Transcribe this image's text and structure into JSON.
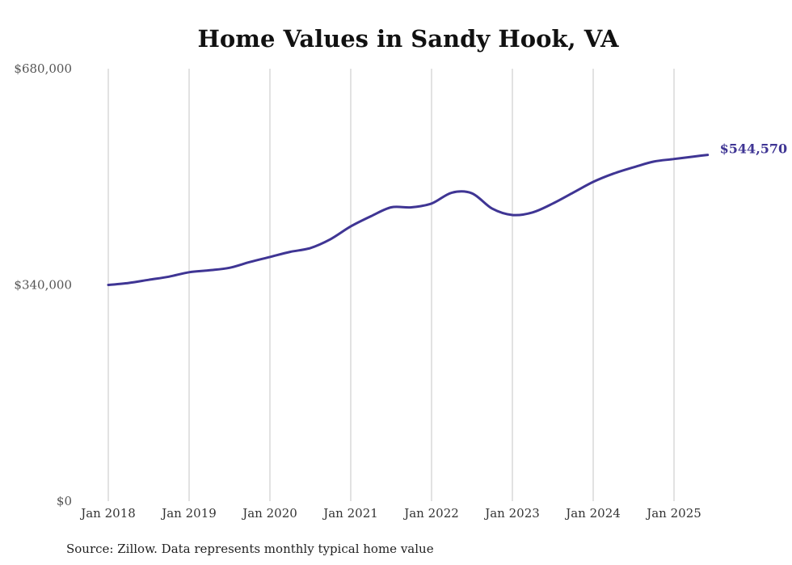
{
  "chart_data": {
    "type": "line",
    "title": "Home Values in Sandy Hook, VA",
    "source": "Source: Zillow. Data represents monthly typical home value",
    "ylim": [
      0,
      680000
    ],
    "yticks": [
      {
        "value": 0,
        "label": "$0"
      },
      {
        "value": 340000,
        "label": "$340,000"
      },
      {
        "value": 680000,
        "label": "$680,000"
      }
    ],
    "xticks": [
      {
        "value": "2018-01",
        "label": "Jan 2018"
      },
      {
        "value": "2019-01",
        "label": "Jan 2019"
      },
      {
        "value": "2020-01",
        "label": "Jan 2020"
      },
      {
        "value": "2021-01",
        "label": "Jan 2021"
      },
      {
        "value": "2022-01",
        "label": "Jan 2022"
      },
      {
        "value": "2023-01",
        "label": "Jan 2023"
      },
      {
        "value": "2024-01",
        "label": "Jan 2024"
      },
      {
        "value": "2025-01",
        "label": "Jan 2025"
      }
    ],
    "grid": "vertical",
    "line_color": "#3f3594",
    "end_label": "$544,570",
    "series": [
      {
        "x": [
          "2018-01",
          "2018-04",
          "2018-07",
          "2018-10",
          "2019-01",
          "2019-04",
          "2019-07",
          "2019-10",
          "2020-01",
          "2020-04",
          "2020-07",
          "2020-10",
          "2021-01",
          "2021-04",
          "2021-07",
          "2021-10",
          "2022-01",
          "2022-04",
          "2022-07",
          "2022-10",
          "2023-01",
          "2023-04",
          "2023-07",
          "2023-10",
          "2024-01",
          "2024-04",
          "2024-07",
          "2024-10",
          "2025-01",
          "2025-04",
          "2025-06"
        ],
        "values": [
          340000,
          343000,
          348000,
          353000,
          360000,
          363000,
          367000,
          376000,
          384000,
          392000,
          398000,
          412000,
          432000,
          448000,
          462000,
          462000,
          468000,
          485000,
          484000,
          460000,
          450000,
          454000,
          468000,
          485000,
          502000,
          515000,
          525000,
          534000,
          538000,
          542000,
          544570
        ]
      }
    ]
  }
}
